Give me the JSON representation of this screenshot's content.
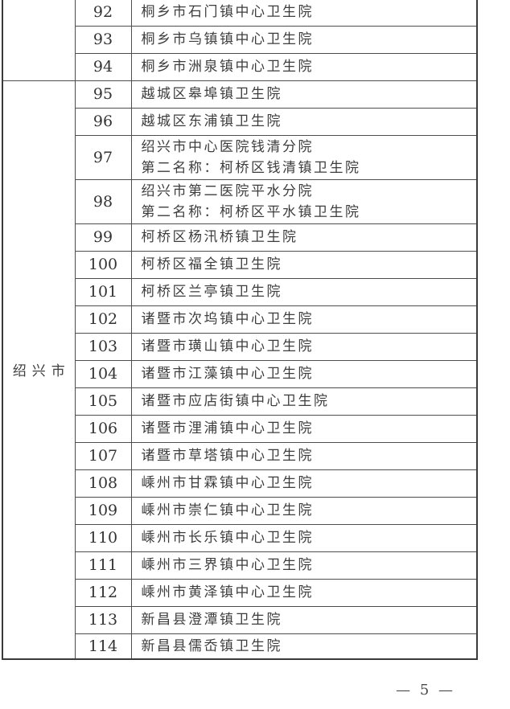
{
  "footer": {
    "page_number": "— 5 —"
  },
  "table": {
    "groups": [
      {
        "city": "",
        "rows": [
          {
            "no": "92",
            "name": "桐乡市石门镇中心卫生院"
          },
          {
            "no": "93",
            "name": "桐乡市乌镇镇中心卫生院"
          },
          {
            "no": "94",
            "name": "桐乡市洲泉镇中心卫生院"
          }
        ]
      },
      {
        "city": "绍兴市",
        "rows": [
          {
            "no": "95",
            "name": "越城区皋埠镇卫生院"
          },
          {
            "no": "96",
            "name": "越城区东浦镇卫生院"
          },
          {
            "no": "97",
            "name": "绍兴市中心医院钱清分院",
            "name2": "第二名称：柯桥区钱清镇卫生院"
          },
          {
            "no": "98",
            "name": "绍兴市第二医院平水分院",
            "name2": "第二名称：柯桥区平水镇卫生院"
          },
          {
            "no": "99",
            "name": "柯桥区杨汛桥镇卫生院"
          },
          {
            "no": "100",
            "name": "柯桥区福全镇卫生院"
          },
          {
            "no": "101",
            "name": "柯桥区兰亭镇卫生院"
          },
          {
            "no": "102",
            "name": "诸暨市次坞镇中心卫生院"
          },
          {
            "no": "103",
            "name": "诸暨市璜山镇中心卫生院"
          },
          {
            "no": "104",
            "name": "诸暨市江藻镇中心卫生院"
          },
          {
            "no": "105",
            "name": "诸暨市应店街镇中心卫生院"
          },
          {
            "no": "106",
            "name": "诸暨市浬浦镇中心卫生院"
          },
          {
            "no": "107",
            "name": "诸暨市草塔镇中心卫生院"
          },
          {
            "no": "108",
            "name": "嵊州市甘霖镇中心卫生院"
          },
          {
            "no": "109",
            "name": "嵊州市崇仁镇中心卫生院"
          },
          {
            "no": "110",
            "name": "嵊州市长乐镇中心卫生院"
          },
          {
            "no": "111",
            "name": "嵊州市三界镇中心卫生院"
          },
          {
            "no": "112",
            "name": "嵊州市黄泽镇中心卫生院"
          },
          {
            "no": "113",
            "name": "新昌县澄潭镇卫生院"
          },
          {
            "no": "114",
            "name": "新昌县儒岙镇卫生院"
          }
        ]
      }
    ]
  }
}
